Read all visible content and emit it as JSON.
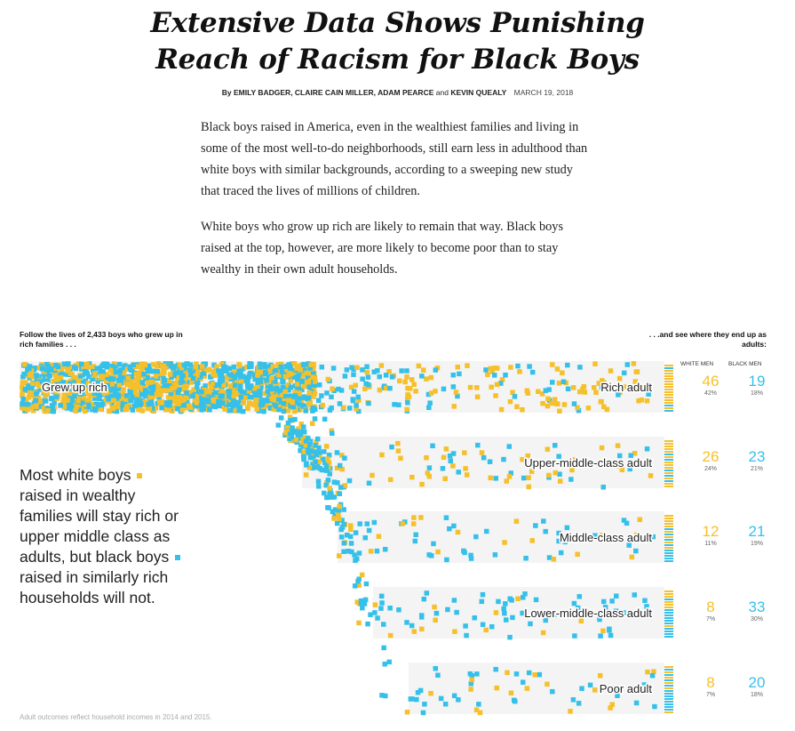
{
  "headline": {
    "line1": "Extensive Data Shows Punishing",
    "line2": "Reach of Racism for Black Boys"
  },
  "byline": {
    "by": "By",
    "authors": "EMILY BADGER, CLAIRE CAIN MILLER, ADAM PEARCE",
    "and": "and",
    "last_author": "KEVIN QUEALY",
    "date": "MARCH 19, 2018"
  },
  "article": {
    "paragraphs": [
      "Black boys raised in America, even in the wealthiest families and living in some of the most well-to-do neighborhoods, still earn less in adulthood than white boys with similar backgrounds, according to a sweeping new study that traced the lives of millions of children.",
      "White boys who grow up rich are likely to remain that way. Black boys raised at the top, however, are more likely to become poor than to stay wealthy in their own adult households."
    ]
  },
  "chart_intro": {
    "left": "Follow the lives of  2,433  boys who grew up in rich families . . .",
    "right": ". . .and see where they end up as adults:"
  },
  "column_heads": {
    "white": "WHITE MEN",
    "black": "BLACK MEN"
  },
  "colors": {
    "white": "#f5c02a",
    "black": "#35c0ea",
    "band": "#f4f4f4"
  },
  "annotation": {
    "part1": "Most white boys",
    "part2": "raised in wealthy families will stay rich or upper middle class as adults, but black boys",
    "part3": "raised in similarly rich households will not."
  },
  "source_note": "Adult outcomes reflect household incomes in 2014 and 2015.",
  "chart_data": {
    "type": "table",
    "origin_label": "Grew up rich",
    "total_boys": 2433,
    "categories": [
      "Rich adult",
      "Upper-middle-class adult",
      "Middle-class adult",
      "Lower-middle-class adult",
      "Poor adult"
    ],
    "series": [
      {
        "name": "White men",
        "values": [
          46,
          26,
          12,
          8,
          8
        ],
        "percent_labels": [
          "42%",
          "24%",
          "11%",
          "7%",
          "7%"
        ]
      },
      {
        "name": "Black men",
        "values": [
          19,
          23,
          21,
          33,
          20
        ],
        "percent_labels": [
          "18%",
          "21%",
          "19%",
          "30%",
          "18%"
        ]
      }
    ]
  }
}
